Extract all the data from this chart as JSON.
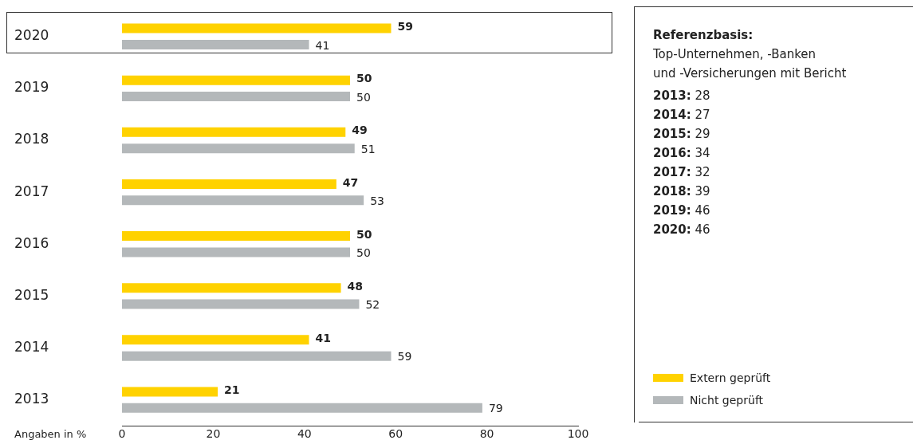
{
  "chart_data": {
    "type": "bar",
    "orientation": "horizontal",
    "categories": [
      "2020",
      "2019",
      "2018",
      "2017",
      "2016",
      "2015",
      "2014",
      "2013"
    ],
    "series": [
      {
        "name": "Extern geprüft",
        "color": "#ffd200",
        "values": [
          59,
          50,
          49,
          47,
          50,
          48,
          41,
          21
        ]
      },
      {
        "name": "Nicht geprüft",
        "color": "#b4b8ba",
        "values": [
          41,
          50,
          51,
          53,
          50,
          52,
          59,
          79
        ]
      }
    ],
    "xlim": [
      0,
      100
    ],
    "xticks": [
      0,
      20,
      40,
      60,
      80,
      100
    ],
    "xlabel": "Angaben in %",
    "data_labels": true,
    "grid": false,
    "legend": "bottom right",
    "annotations": [
      "Referenzbasis:",
      "Top-Unternehmen, -Banken",
      "und -Versicherungen mit Bericht",
      "2013: 28",
      "2014: 27",
      "2015: 29",
      "2016: 34",
      "2017: 32",
      "2018: 39",
      "2019: 46",
      "2020: 46"
    ]
  }
}
